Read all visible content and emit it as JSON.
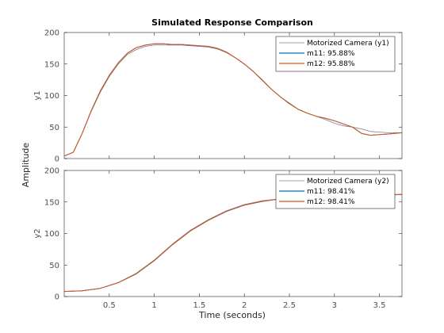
{
  "chart_data": {
    "type": "line",
    "title": "Simulated Response Comparison",
    "xlabel": "Time (seconds)",
    "ylabel": "Amplitude",
    "xlim": [
      0,
      3.75
    ],
    "x_ticks": [
      "0.5",
      "1",
      "1.5",
      "2",
      "2.5",
      "3",
      "3.5"
    ],
    "grid": false,
    "colors": {
      "measured": "#808080",
      "m11": "#0072bd",
      "m12": "#d95319"
    },
    "subplots": [
      {
        "ylabel": "y1",
        "ylim": [
          0,
          200
        ],
        "y_ticks": [
          "0",
          "50",
          "100",
          "150",
          "200"
        ],
        "legend_position": "top-right",
        "legend": [
          "Motorized Camera (y1)",
          "m11: 95.88%",
          "m12: 95.88%"
        ],
        "series": [
          {
            "name": "Motorized Camera (y1)",
            "x": [
              0,
              0.1,
              0.2,
              0.3,
              0.4,
              0.5,
              0.6,
              0.7,
              0.8,
              0.9,
              1.0,
              1.1,
              1.2,
              1.3,
              1.4,
              1.5,
              1.6,
              1.7,
              1.8,
              1.9,
              2.0,
              2.1,
              2.2,
              2.3,
              2.4,
              2.5,
              2.6,
              2.7,
              2.8,
              2.9,
              3.0,
              3.1,
              3.2,
              3.3,
              3.4,
              3.5,
              3.6,
              3.75
            ],
            "y": [
              4,
              10,
              40,
              75,
              105,
              130,
              150,
              165,
              173,
              178,
              180,
              180,
              180,
              180,
              179,
              178,
              177,
              174,
              168,
              160,
              150,
              138,
              125,
              110,
              98,
              88,
              78,
              72,
              67,
              62,
              56,
              52,
              50,
              47,
              43,
              42,
              41,
              41
            ]
          },
          {
            "name": "m11: 95.88%",
            "x": [
              0,
              0.1,
              0.2,
              0.3,
              0.4,
              0.5,
              0.6,
              0.7,
              0.8,
              0.9,
              1.0,
              1.1,
              1.2,
              1.3,
              1.4,
              1.5,
              1.6,
              1.7,
              1.8,
              1.9,
              2.0,
              2.1,
              2.2,
              2.3,
              2.4,
              2.5,
              2.6,
              2.7,
              2.8,
              2.9,
              3.0,
              3.1,
              3.2,
              3.3,
              3.4,
              3.5,
              3.6,
              3.75
            ],
            "y": [
              4,
              10,
              40,
              76,
              107,
              132,
              152,
              167,
              176,
              180,
              182,
              182,
              181,
              181,
              180,
              179,
              178,
              175,
              169,
              160,
              150,
              138,
              124,
              110,
              98,
              87,
              78,
              72,
              67,
              64,
              60,
              55,
              50,
              40,
              37,
              38,
              39,
              41
            ]
          },
          {
            "name": "m12: 95.88%",
            "x": [
              0,
              0.1,
              0.2,
              0.3,
              0.4,
              0.5,
              0.6,
              0.7,
              0.8,
              0.9,
              1.0,
              1.1,
              1.2,
              1.3,
              1.4,
              1.5,
              1.6,
              1.7,
              1.8,
              1.9,
              2.0,
              2.1,
              2.2,
              2.3,
              2.4,
              2.5,
              2.6,
              2.7,
              2.8,
              2.9,
              3.0,
              3.1,
              3.2,
              3.3,
              3.4,
              3.5,
              3.6,
              3.75
            ],
            "y": [
              4,
              10,
              40,
              76,
              107,
              132,
              152,
              167,
              176,
              180,
              182,
              182,
              181,
              181,
              180,
              179,
              178,
              175,
              169,
              160,
              150,
              138,
              124,
              110,
              98,
              87,
              78,
              72,
              67,
              64,
              60,
              55,
              50,
              40,
              37,
              38,
              39,
              41
            ]
          }
        ]
      },
      {
        "ylabel": "y2",
        "ylim": [
          0,
          200
        ],
        "y_ticks": [
          "0",
          "50",
          "100",
          "150",
          "200"
        ],
        "legend_position": "top-right",
        "legend": [
          "Motorized Camera (y2)",
          "m11: 98.41%",
          "m12: 98.41%"
        ],
        "series": [
          {
            "name": "Motorized Camera (y2)",
            "x": [
              0,
              0.2,
              0.4,
              0.6,
              0.8,
              1.0,
              1.2,
              1.4,
              1.6,
              1.8,
              2.0,
              2.2,
              2.4,
              2.6,
              2.8,
              3.0,
              3.2,
              3.4,
              3.6,
              3.75
            ],
            "y": [
              8,
              9,
              13,
              22,
              37,
              58,
              83,
              105,
              122,
              136,
              146,
              152,
              155,
              157,
              158,
              159,
              160,
              161,
              162,
              162
            ]
          },
          {
            "name": "m11: 98.41%",
            "x": [
              0,
              0.2,
              0.4,
              0.6,
              0.8,
              1.0,
              1.2,
              1.4,
              1.6,
              1.8,
              2.0,
              2.2,
              2.4,
              2.6,
              2.8,
              3.0,
              3.2,
              3.4,
              3.6,
              3.75
            ],
            "y": [
              8,
              9,
              13,
              22,
              36,
              57,
              82,
              104,
              121,
              135,
              145,
              151,
              155,
              157,
              158,
              159,
              160,
              161,
              161,
              162
            ]
          },
          {
            "name": "m12: 98.41%",
            "x": [
              0,
              0.2,
              0.4,
              0.6,
              0.8,
              1.0,
              1.2,
              1.4,
              1.6,
              1.8,
              2.0,
              2.2,
              2.4,
              2.6,
              2.8,
              3.0,
              3.2,
              3.4,
              3.6,
              3.75
            ],
            "y": [
              8,
              9,
              13,
              22,
              36,
              57,
              82,
              104,
              121,
              135,
              145,
              151,
              155,
              157,
              158,
              159,
              160,
              161,
              161,
              162
            ]
          }
        ]
      }
    ]
  }
}
